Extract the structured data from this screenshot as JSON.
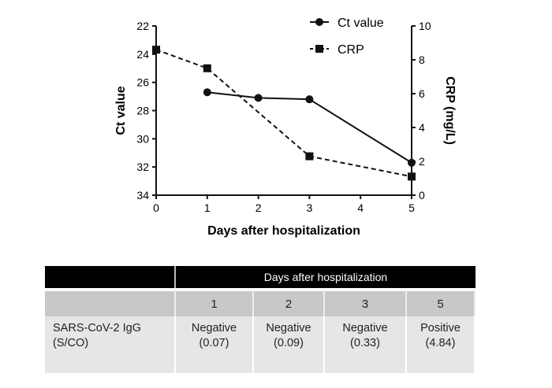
{
  "chart_data": {
    "type": "line",
    "xlabel": "Days after hospitalization",
    "ylabel": "Ct value",
    "y2label": "CRP (mg/L)",
    "xlim": [
      0,
      5
    ],
    "ylim": [
      34,
      22
    ],
    "y2lim": [
      0,
      10
    ],
    "x_ticks": [
      "0",
      "1",
      "2",
      "3",
      "4",
      "5"
    ],
    "y_ticks": [
      "22",
      "24",
      "26",
      "28",
      "30",
      "32",
      "34"
    ],
    "y2_ticks": [
      "0",
      "2",
      "4",
      "6",
      "8",
      "10"
    ],
    "legend_position": "top-right",
    "series": [
      {
        "name": "Ct value",
        "axis": "left",
        "marker": "circle",
        "style": "solid",
        "x": [
          1,
          2,
          3,
          5
        ],
        "values": [
          26.7,
          27.1,
          27.2,
          31.7
        ]
      },
      {
        "name": "CRP",
        "axis": "right",
        "marker": "square",
        "style": "dashed",
        "x": [
          0,
          1,
          3,
          5
        ],
        "values": [
          8.6,
          7.5,
          2.3,
          1.1
        ]
      }
    ]
  },
  "table": {
    "header": "Days after hospitalization",
    "days": [
      "1",
      "2",
      "3",
      "5"
    ],
    "row_label": [
      "SARS-CoV-2 IgG",
      "(S/CO)"
    ],
    "results": [
      {
        "status": "Negative",
        "value": "(0.07)"
      },
      {
        "status": "Negative",
        "value": "(0.09)"
      },
      {
        "status": "Negative",
        "value": "(0.33)"
      },
      {
        "status": "Positive",
        "value": "(4.84)"
      }
    ]
  }
}
